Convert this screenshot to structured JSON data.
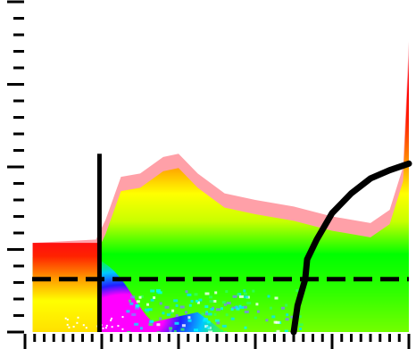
{
  "chart_data": {
    "type": "heatmap",
    "title": "",
    "xlabel": "",
    "ylabel": "",
    "x_axis": {
      "range": [
        0,
        1
      ],
      "major_tick_count": 6,
      "minor_per_major": 7,
      "tick_labels": []
    },
    "y_axis": {
      "range": [
        0,
        1
      ],
      "major_tick_count": 5,
      "minor_per_major": 4,
      "tick_labels": []
    },
    "grid": false,
    "legend": "none",
    "colors": {
      "low_to_high": [
        "#ff00ff",
        "#0000ff",
        "#00ffff",
        "#00ff00",
        "#ffff00",
        "#ff8800",
        "#ff0000",
        "#ffa0a8"
      ],
      "lines": "#000000",
      "background": "#ffffff"
    },
    "field": {
      "x_start": 0.02,
      "x_end": 1.0,
      "step_x": 0.19,
      "top_envelope": [
        {
          "x": 0.02,
          "y": 0.27
        },
        {
          "x": 0.185,
          "y": 0.28
        },
        {
          "x": 0.21,
          "y": 0.34
        },
        {
          "x": 0.25,
          "y": 0.47
        },
        {
          "x": 0.3,
          "y": 0.48
        },
        {
          "x": 0.36,
          "y": 0.53
        },
        {
          "x": 0.4,
          "y": 0.54
        },
        {
          "x": 0.45,
          "y": 0.48
        },
        {
          "x": 0.52,
          "y": 0.42
        },
        {
          "x": 0.6,
          "y": 0.4
        },
        {
          "x": 0.7,
          "y": 0.38
        },
        {
          "x": 0.8,
          "y": 0.35
        },
        {
          "x": 0.9,
          "y": 0.33
        },
        {
          "x": 0.95,
          "y": 0.37
        },
        {
          "x": 0.985,
          "y": 0.5
        },
        {
          "x": 1.0,
          "y": 0.88
        }
      ]
    },
    "overlays": {
      "vertical_line": {
        "x": 0.194,
        "y_range": [
          0.0,
          0.54
        ]
      },
      "dashed_line": {
        "y": 0.16,
        "x_range": [
          0.0,
          1.0
        ]
      },
      "curve": [
        {
          "x": 0.7,
          "y": 0.0
        },
        {
          "x": 0.71,
          "y": 0.08
        },
        {
          "x": 0.73,
          "y": 0.16
        },
        {
          "x": 0.735,
          "y": 0.22
        },
        {
          "x": 0.76,
          "y": 0.28
        },
        {
          "x": 0.8,
          "y": 0.36
        },
        {
          "x": 0.85,
          "y": 0.42
        },
        {
          "x": 0.9,
          "y": 0.465
        },
        {
          "x": 0.95,
          "y": 0.49
        },
        {
          "x": 1.0,
          "y": 0.51
        }
      ]
    }
  }
}
